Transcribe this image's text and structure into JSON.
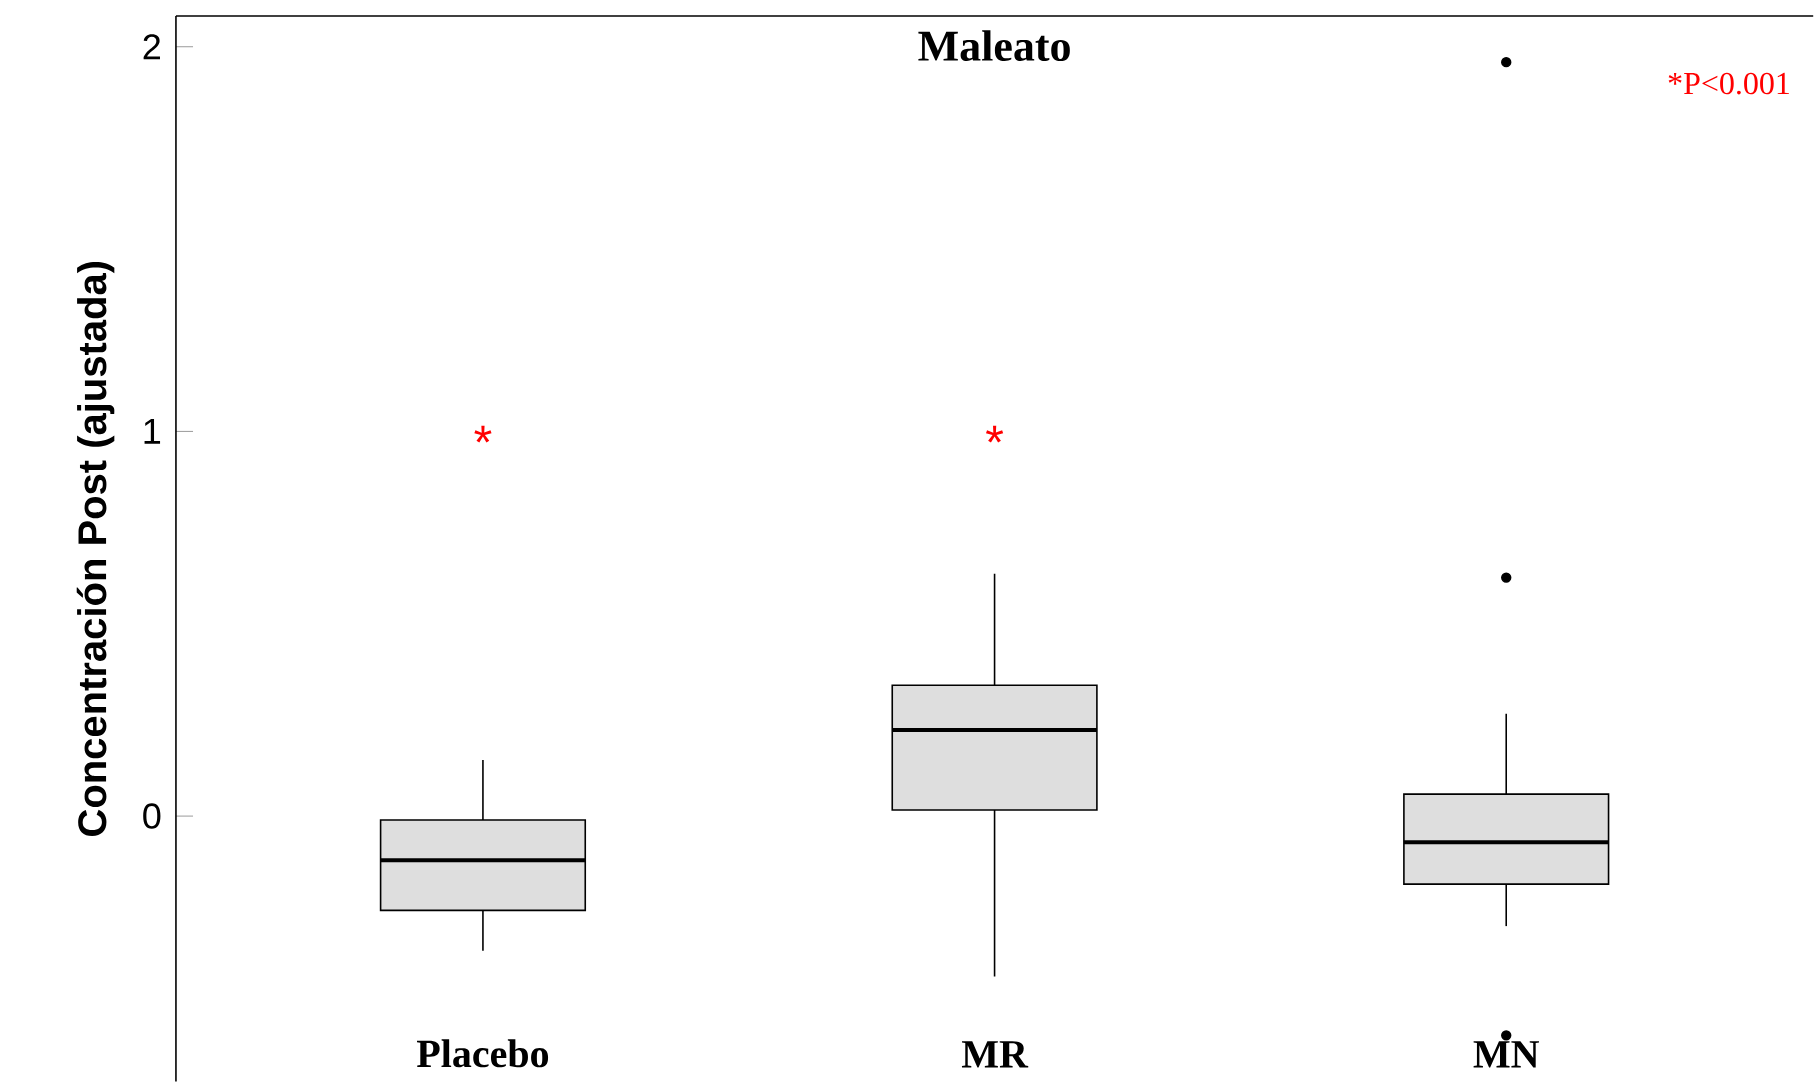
{
  "chart_data": {
    "type": "box",
    "title": "Maleato",
    "ylabel": "Concentración Post (ajustada)",
    "categories": [
      "Placebo",
      "MR",
      "MN"
    ],
    "color": "#dedede",
    "boxes": [
      {
        "low": -0.35,
        "q1": -0.245,
        "median": -0.115,
        "q3": -0.01,
        "high": 0.146
      },
      {
        "low": -0.417,
        "q1": 0.016,
        "median": 0.224,
        "q3": 0.34,
        "high": 0.63
      },
      {
        "low": -0.286,
        "q1": -0.177,
        "median": -0.068,
        "q3": 0.057,
        "high": 0.266,
        "outliers": [
          0.62,
          1.96,
          -0.57
        ]
      }
    ],
    "ylim": [
      -0.69,
      2.08
    ],
    "yticks": [
      0,
      1,
      2
    ],
    "annotations": [
      "*",
      "*",
      "*P<0.001"
    ]
  }
}
